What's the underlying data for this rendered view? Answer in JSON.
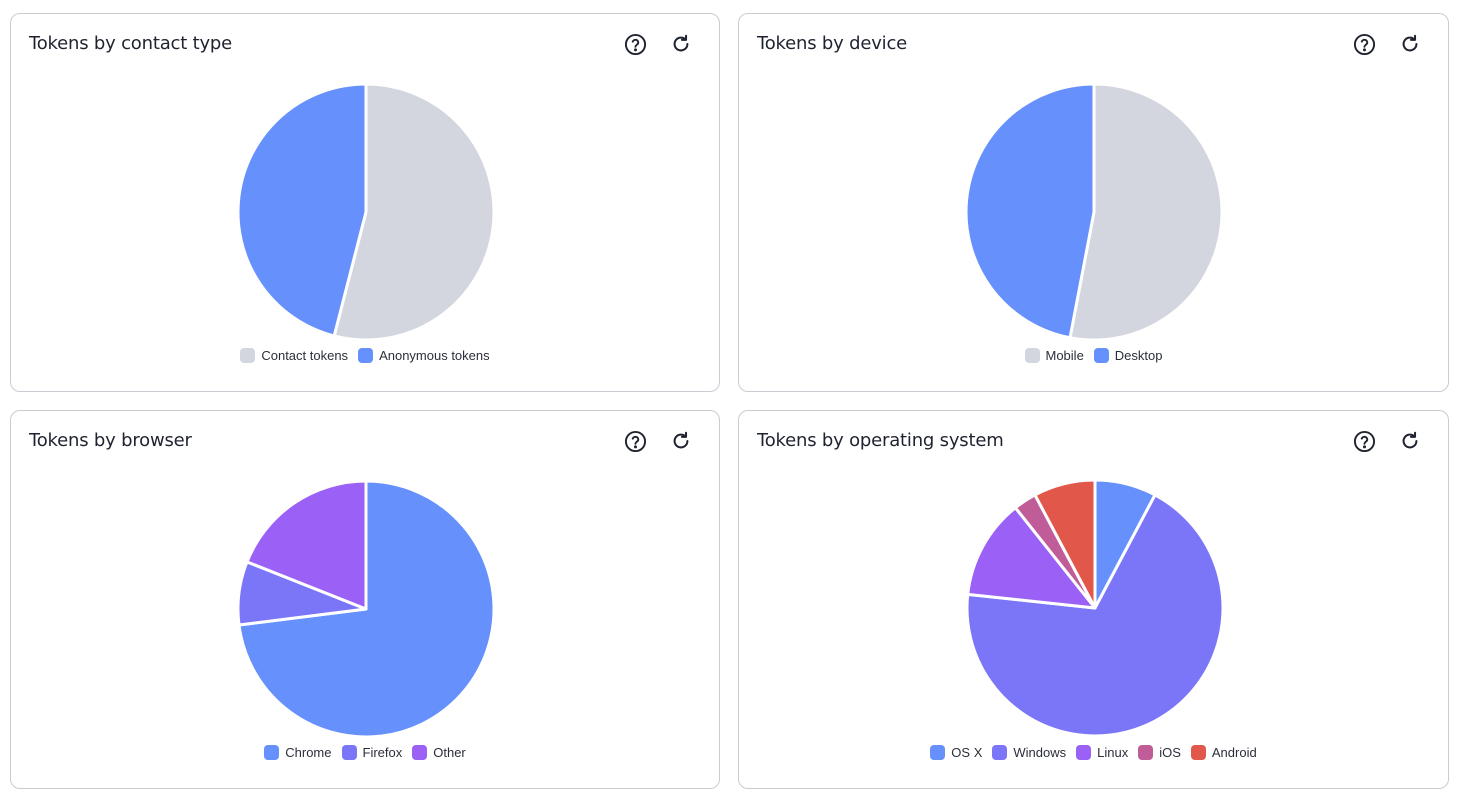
{
  "chart_data": [
    {
      "type": "pie",
      "title": "Tokens by contact type",
      "labels": [
        "Contact tokens",
        "Anonymous tokens"
      ],
      "values": [
        54,
        46
      ],
      "colors": [
        "#d3d6df",
        "#6690fc"
      ],
      "legend_position": "bottom"
    },
    {
      "type": "pie",
      "title": "Tokens by device",
      "labels": [
        "Mobile",
        "Desktop"
      ],
      "values": [
        53,
        47
      ],
      "colors": [
        "#d3d6df",
        "#6690fc"
      ],
      "legend_position": "bottom"
    },
    {
      "type": "pie",
      "title": "Tokens by browser",
      "labels": [
        "Chrome",
        "Firefox",
        "Other"
      ],
      "values": [
        73,
        8,
        19
      ],
      "colors": [
        "#6690fc",
        "#7b76f8",
        "#9b61f7"
      ],
      "legend_position": "bottom"
    },
    {
      "type": "pie",
      "title": "Tokens by operating system",
      "labels": [
        "OS X",
        "Windows",
        "Linux",
        "iOS",
        "Android"
      ],
      "values": [
        8,
        71,
        13,
        3,
        8
      ],
      "colors": [
        "#6690fc",
        "#7b76f8",
        "#9b61f7",
        "#c05d98",
        "#e1574a"
      ],
      "legend_position": "bottom"
    }
  ],
  "icons": {
    "help": "help-circle-icon",
    "refresh": "refresh-icon"
  }
}
